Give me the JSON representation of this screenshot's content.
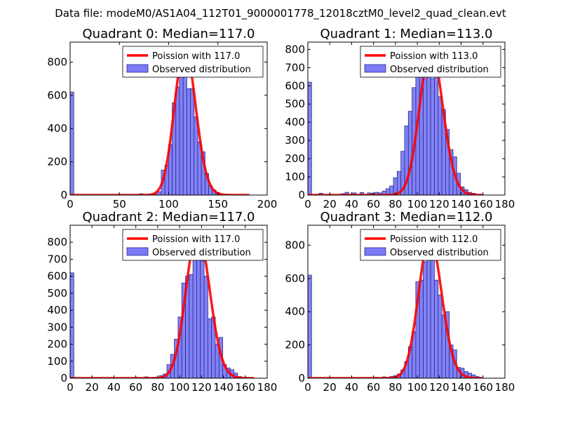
{
  "figure_title": "Data file: modeM0/AS1A04_112T01_9000001778_12018cztM0_level2_quad_clean.evt",
  "colors": {
    "histogram_fill": "#7b7bf7",
    "histogram_edge": "#2a2a8a",
    "poisson_line": "#ff0000"
  },
  "chart_data": [
    {
      "type": "bar",
      "title": "Quadrant 0: Median=117.0",
      "legend": {
        "line": "Poission with 117.0",
        "bars": "Observed distribution",
        "placement": "top-right"
      },
      "xlim": [
        0,
        200
      ],
      "ylim": [
        0,
        920
      ],
      "xticks": [
        0,
        50,
        100,
        150,
        200
      ],
      "xtick_labels": [
        "0",
        "50",
        "100",
        "150",
        "200"
      ],
      "yticks": [
        0,
        200,
        400,
        600,
        800
      ],
      "ytick_labels": [
        "0",
        "200",
        "400",
        "600",
        "800"
      ],
      "bin_width": 3.7,
      "bins": [
        [
          0,
          620
        ],
        [
          66.6,
          3
        ],
        [
          70.3,
          8
        ],
        [
          77.7,
          2
        ],
        [
          81.4,
          2
        ],
        [
          85.1,
          5
        ],
        [
          88.8,
          20
        ],
        [
          92.5,
          150
        ],
        [
          96.2,
          180
        ],
        [
          99.9,
          305
        ],
        [
          103.6,
          555
        ],
        [
          107.3,
          650
        ],
        [
          111.0,
          770
        ],
        [
          114.7,
          820
        ],
        [
          118.4,
          640
        ],
        [
          122.1,
          640
        ],
        [
          125.8,
          470
        ],
        [
          129.5,
          320
        ],
        [
          133.2,
          260
        ],
        [
          136.9,
          130
        ],
        [
          140.6,
          55
        ],
        [
          144.3,
          30
        ],
        [
          148.0,
          15
        ]
      ],
      "poisson": {
        "mean": 117.0,
        "peak": 880,
        "x_range": [
          0,
          182
        ]
      }
    },
    {
      "type": "bar",
      "title": "Quadrant 1: Median=113.0",
      "legend": {
        "line": "Poission with 113.0",
        "bars": "Observed distribution",
        "placement": "top-right"
      },
      "xlim": [
        0,
        180
      ],
      "ylim": [
        0,
        840
      ],
      "xticks": [
        0,
        20,
        40,
        60,
        80,
        100,
        120,
        140,
        160,
        180
      ],
      "xtick_labels": [
        "0",
        "20",
        "40",
        "60",
        "80",
        "100",
        "120",
        "140",
        "160",
        "180"
      ],
      "yticks": [
        0,
        100,
        200,
        300,
        400,
        500,
        600,
        700,
        800
      ],
      "ytick_labels": [
        "0",
        "100",
        "200",
        "300",
        "400",
        "500",
        "600",
        "700",
        "800"
      ],
      "bin_width": 3.4,
      "bins": [
        [
          0,
          620
        ],
        [
          10.2,
          10
        ],
        [
          20.4,
          2
        ],
        [
          30.6,
          8
        ],
        [
          34.0,
          15
        ],
        [
          40.8,
          12
        ],
        [
          47.6,
          14
        ],
        [
          54.4,
          12
        ],
        [
          57.8,
          10
        ],
        [
          61.2,
          15
        ],
        [
          64.6,
          12
        ],
        [
          68.0,
          22
        ],
        [
          71.4,
          35
        ],
        [
          74.8,
          50
        ],
        [
          78.2,
          95
        ],
        [
          81.6,
          130
        ],
        [
          85.0,
          240
        ],
        [
          88.4,
          380
        ],
        [
          91.8,
          460
        ],
        [
          95.2,
          590
        ],
        [
          98.6,
          700
        ],
        [
          102.0,
          800
        ],
        [
          105.4,
          690
        ],
        [
          108.8,
          720
        ],
        [
          112.2,
          640
        ],
        [
          115.6,
          720
        ],
        [
          119.0,
          540
        ],
        [
          122.4,
          470
        ],
        [
          125.8,
          360
        ],
        [
          129.2,
          250
        ],
        [
          132.6,
          210
        ],
        [
          136.0,
          120
        ],
        [
          139.4,
          45
        ],
        [
          142.8,
          30
        ],
        [
          146.2,
          15
        ],
        [
          149.6,
          10
        ]
      ],
      "poisson": {
        "mean": 113.0,
        "peak": 800,
        "x_range": [
          0,
          160
        ]
      }
    },
    {
      "type": "bar",
      "title": "Quadrant 2: Median=117.0",
      "legend": {
        "line": "Poission with 117.0",
        "bars": "Observed distribution",
        "placement": "top-right"
      },
      "xlim": [
        0,
        180
      ],
      "ylim": [
        0,
        900
      ],
      "xticks": [
        0,
        20,
        40,
        60,
        80,
        100,
        120,
        140,
        160,
        180
      ],
      "xtick_labels": [
        "0",
        "20",
        "40",
        "60",
        "80",
        "100",
        "120",
        "140",
        "160",
        "180"
      ],
      "yticks": [
        0,
        100,
        200,
        300,
        400,
        500,
        600,
        700,
        800
      ],
      "ytick_labels": [
        "0",
        "100",
        "200",
        "300",
        "400",
        "500",
        "600",
        "700",
        "800"
      ],
      "bin_width": 3.4,
      "bins": [
        [
          0,
          620
        ],
        [
          68.0,
          8
        ],
        [
          74.8,
          5
        ],
        [
          78.2,
          6
        ],
        [
          81.6,
          15
        ],
        [
          85.0,
          25
        ],
        [
          88.4,
          80
        ],
        [
          91.8,
          140
        ],
        [
          95.2,
          230
        ],
        [
          98.6,
          360
        ],
        [
          102.0,
          560
        ],
        [
          105.4,
          600
        ],
        [
          108.8,
          610
        ],
        [
          112.2,
          760
        ],
        [
          115.6,
          830
        ],
        [
          119.0,
          690
        ],
        [
          122.4,
          600
        ],
        [
          125.8,
          350
        ],
        [
          129.2,
          360
        ],
        [
          132.6,
          200
        ],
        [
          136.0,
          240
        ],
        [
          139.4,
          80
        ],
        [
          142.8,
          60
        ],
        [
          146.2,
          50
        ],
        [
          149.6,
          30
        ],
        [
          153.0,
          10
        ]
      ],
      "poisson": {
        "mean": 117.0,
        "peak": 860,
        "x_range": [
          0,
          168
        ]
      }
    },
    {
      "type": "bar",
      "title": "Quadrant 3: Median=112.0",
      "legend": {
        "line": "Poission with 112.0",
        "bars": "Observed distribution",
        "placement": "top-right"
      },
      "xlim": [
        0,
        180
      ],
      "ylim": [
        0,
        920
      ],
      "xticks": [
        0,
        20,
        40,
        60,
        80,
        100,
        120,
        140,
        160,
        180
      ],
      "xtick_labels": [
        "0",
        "20",
        "40",
        "60",
        "80",
        "100",
        "120",
        "140",
        "160",
        "180"
      ],
      "yticks": [
        0,
        200,
        400,
        600,
        800
      ],
      "ytick_labels": [
        "0",
        "200",
        "400",
        "600",
        "800"
      ],
      "bin_width": 3.4,
      "bins": [
        [
          0,
          620
        ],
        [
          61.2,
          5
        ],
        [
          68.0,
          8
        ],
        [
          74.8,
          10
        ],
        [
          78.2,
          15
        ],
        [
          81.6,
          25
        ],
        [
          85.0,
          50
        ],
        [
          88.4,
          100
        ],
        [
          91.8,
          190
        ],
        [
          95.2,
          280
        ],
        [
          98.6,
          580
        ],
        [
          102.0,
          590
        ],
        [
          105.4,
          700
        ],
        [
          108.8,
          870
        ],
        [
          112.2,
          840
        ],
        [
          115.6,
          590
        ],
        [
          119.0,
          500
        ],
        [
          122.4,
          380
        ],
        [
          125.8,
          400
        ],
        [
          129.2,
          200
        ],
        [
          132.6,
          170
        ],
        [
          136.0,
          65
        ],
        [
          139.4,
          60
        ],
        [
          142.8,
          40
        ],
        [
          146.2,
          30
        ],
        [
          149.6,
          20
        ],
        [
          153.0,
          10
        ]
      ],
      "poisson": {
        "mean": 112.0,
        "peak": 840,
        "x_range": [
          0,
          160
        ]
      }
    }
  ]
}
